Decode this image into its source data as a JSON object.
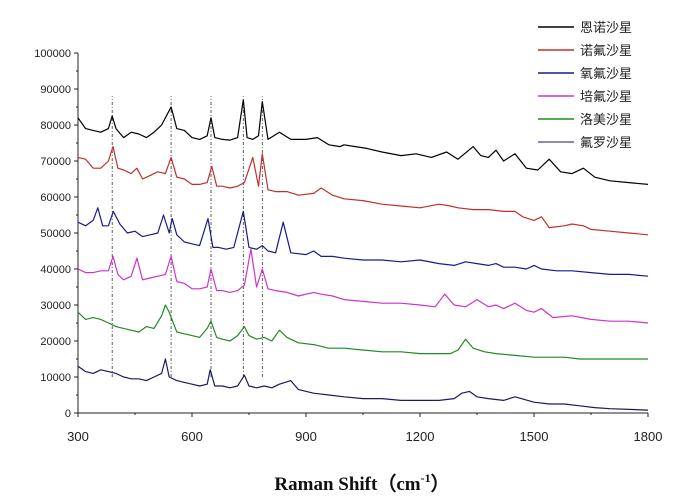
{
  "chart_data": {
    "type": "line",
    "title": "",
    "xlabel": "Raman Shift（cm-1）",
    "xlabel_main": "Raman Shift（cm",
    "xlabel_sup": "-1",
    "xlabel_close": "）",
    "ylabel": "",
    "xlim": [
      300,
      1800
    ],
    "ylim": [
      0,
      100000
    ],
    "x_ticks": [
      300,
      600,
      900,
      1200,
      1500,
      1800
    ],
    "y_ticks": [
      0,
      10000,
      20000,
      30000,
      40000,
      50000,
      60000,
      70000,
      80000,
      90000,
      100000
    ],
    "x_tick_labels": [
      "300",
      "600",
      "900",
      "1200",
      "1500",
      "1800"
    ],
    "y_tick_labels": [
      "0",
      "10000",
      "20000",
      "30000",
      "40000",
      "50000",
      "60000",
      "70000",
      "80000",
      "90000",
      "100000"
    ],
    "grid": false,
    "legend_position": "top-right",
    "marker_lines_x": [
      390,
      545,
      650,
      735,
      785
    ],
    "series": [
      {
        "name": "恩诺沙星",
        "color": "#000000",
        "x": [
          300,
          320,
          340,
          360,
          380,
          390,
          400,
          420,
          440,
          460,
          480,
          500,
          520,
          535,
          545,
          560,
          580,
          600,
          620,
          640,
          650,
          660,
          680,
          700,
          720,
          735,
          745,
          760,
          775,
          785,
          800,
          830,
          860,
          900,
          930,
          960,
          990,
          1000,
          1030,
          1060,
          1100,
          1150,
          1190,
          1230,
          1270,
          1300,
          1340,
          1360,
          1380,
          1400,
          1420,
          1450,
          1480,
          1510,
          1540,
          1570,
          1600,
          1630,
          1660,
          1700,
          1750,
          1800
        ],
        "values": [
          82000,
          79000,
          78500,
          78000,
          79000,
          82500,
          79000,
          76500,
          78000,
          77500,
          76500,
          78000,
          80000,
          83000,
          85000,
          79000,
          78500,
          76500,
          76000,
          77000,
          82000,
          76500,
          76000,
          75800,
          76500,
          87000,
          76500,
          76000,
          77000,
          86500,
          76000,
          78000,
          76000,
          76000,
          76500,
          74500,
          74000,
          74500,
          74000,
          73500,
          72500,
          71500,
          72000,
          71000,
          72500,
          70500,
          74000,
          71500,
          71000,
          73000,
          70000,
          72000,
          68000,
          67500,
          70500,
          67000,
          66500,
          68000,
          65500,
          64500,
          64000,
          63500
        ]
      },
      {
        "name": "诺氟沙星",
        "color": "#c0302b",
        "x": [
          300,
          320,
          340,
          360,
          380,
          392,
          405,
          420,
          440,
          455,
          470,
          490,
          510,
          530,
          545,
          560,
          580,
          600,
          620,
          640,
          652,
          665,
          680,
          700,
          720,
          738,
          760,
          775,
          785,
          800,
          820,
          850,
          880,
          920,
          940,
          970,
          1000,
          1050,
          1100,
          1150,
          1200,
          1250,
          1280,
          1300,
          1340,
          1380,
          1420,
          1450,
          1470,
          1500,
          1520,
          1540,
          1580,
          1600,
          1630,
          1650,
          1700,
          1750,
          1800
        ],
        "values": [
          71000,
          70500,
          68000,
          68000,
          70000,
          74000,
          68000,
          67500,
          66500,
          68000,
          65000,
          66000,
          67000,
          66500,
          71000,
          65500,
          65000,
          63500,
          63500,
          64000,
          68500,
          63000,
          63000,
          62500,
          63000,
          64000,
          71000,
          63000,
          72000,
          62000,
          61500,
          61500,
          60500,
          61000,
          62500,
          60500,
          59500,
          59000,
          58000,
          57500,
          57000,
          58000,
          57500,
          57000,
          56500,
          56500,
          56000,
          56000,
          54500,
          53500,
          54500,
          51500,
          52000,
          52500,
          52000,
          51000,
          50500,
          50000,
          49500
        ]
      },
      {
        "name": "氧氟沙星",
        "color": "#1a1a8c",
        "x": [
          300,
          320,
          340,
          352,
          365,
          380,
          393,
          410,
          430,
          450,
          470,
          490,
          510,
          525,
          540,
          548,
          560,
          580,
          600,
          620,
          642,
          655,
          670,
          690,
          710,
          735,
          750,
          770,
          785,
          800,
          820,
          840,
          860,
          900,
          920,
          940,
          970,
          1000,
          1050,
          1100,
          1150,
          1200,
          1250,
          1290,
          1320,
          1350,
          1380,
          1400,
          1420,
          1450,
          1480,
          1500,
          1520,
          1560,
          1600,
          1650,
          1700,
          1750,
          1800
        ],
        "values": [
          53000,
          52000,
          53500,
          57000,
          52000,
          52000,
          56000,
          52500,
          50000,
          50500,
          49000,
          49500,
          50000,
          55000,
          50000,
          54000,
          49500,
          47500,
          47000,
          46500,
          54000,
          46000,
          46000,
          45500,
          46000,
          56000,
          46000,
          45500,
          46500,
          45000,
          44500,
          53000,
          44500,
          44000,
          45000,
          43500,
          43500,
          43000,
          42500,
          42500,
          42000,
          42500,
          41500,
          41000,
          42000,
          41500,
          41000,
          41500,
          40500,
          40500,
          40000,
          41000,
          40000,
          39500,
          39500,
          39000,
          38500,
          38500,
          38000
        ]
      },
      {
        "name": "培氟沙星",
        "color": "#cc33cc",
        "x": [
          300,
          320,
          340,
          360,
          380,
          392,
          405,
          420,
          440,
          455,
          470,
          490,
          510,
          530,
          545,
          560,
          580,
          600,
          620,
          640,
          650,
          665,
          680,
          700,
          720,
          738,
          755,
          770,
          785,
          800,
          820,
          850,
          880,
          920,
          940,
          970,
          1000,
          1050,
          1100,
          1150,
          1200,
          1240,
          1265,
          1290,
          1320,
          1350,
          1380,
          1400,
          1420,
          1450,
          1480,
          1500,
          1520,
          1550,
          1600,
          1650,
          1700,
          1750,
          1800
        ],
        "values": [
          40000,
          39000,
          39000,
          39500,
          39500,
          43500,
          38500,
          37000,
          38000,
          43000,
          37000,
          37500,
          38000,
          38500,
          43500,
          36500,
          36000,
          34500,
          34500,
          35000,
          40000,
          34000,
          34000,
          33500,
          34000,
          35500,
          45500,
          35000,
          40000,
          34500,
          34000,
          33500,
          32500,
          33500,
          33000,
          32500,
          31500,
          31000,
          30500,
          30500,
          30000,
          29500,
          33000,
          30000,
          29500,
          31500,
          29500,
          30000,
          29000,
          30500,
          28500,
          28000,
          29000,
          26500,
          27000,
          26000,
          25500,
          25500,
          25000
        ]
      },
      {
        "name": "洛美沙星",
        "color": "#228b22",
        "x": [
          300,
          320,
          340,
          360,
          380,
          400,
          420,
          440,
          460,
          480,
          500,
          520,
          530,
          540,
          560,
          580,
          600,
          620,
          640,
          650,
          665,
          680,
          700,
          720,
          738,
          750,
          770,
          790,
          810,
          830,
          850,
          880,
          920,
          960,
          1000,
          1050,
          1100,
          1150,
          1200,
          1250,
          1280,
          1300,
          1320,
          1340,
          1370,
          1400,
          1450,
          1500,
          1540,
          1580,
          1620,
          1660,
          1700,
          1750,
          1800
        ],
        "values": [
          28000,
          26000,
          26500,
          26000,
          25000,
          24000,
          23500,
          23000,
          22500,
          24000,
          23500,
          27000,
          30000,
          28000,
          22500,
          22000,
          21500,
          21000,
          23500,
          25500,
          21000,
          20500,
          20000,
          21500,
          24000,
          21500,
          20500,
          21000,
          20000,
          23000,
          21000,
          19500,
          19000,
          18000,
          18000,
          17500,
          17000,
          17000,
          16500,
          16500,
          16500,
          17500,
          20500,
          18000,
          17000,
          16500,
          16000,
          15500,
          15500,
          15500,
          15000,
          15000,
          15000,
          15000,
          15000
        ]
      },
      {
        "name": "氟罗沙星",
        "color": "#1a1a5e",
        "x": [
          300,
          320,
          340,
          360,
          380,
          400,
          420,
          440,
          460,
          480,
          500,
          520,
          530,
          540,
          560,
          580,
          600,
          620,
          640,
          648,
          660,
          680,
          700,
          720,
          738,
          750,
          770,
          790,
          810,
          830,
          860,
          880,
          920,
          960,
          1000,
          1050,
          1100,
          1150,
          1200,
          1250,
          1290,
          1310,
          1330,
          1350,
          1380,
          1420,
          1450,
          1500,
          1540,
          1580,
          1620,
          1660,
          1700,
          1750,
          1800
        ],
        "values": [
          13000,
          11500,
          11000,
          12000,
          11500,
          11000,
          10000,
          9500,
          9500,
          9000,
          10000,
          11000,
          15000,
          10000,
          9000,
          8500,
          8000,
          7500,
          8000,
          12000,
          7500,
          7500,
          7000,
          7500,
          10500,
          7500,
          7000,
          7500,
          7000,
          8000,
          9000,
          6500,
          5500,
          5000,
          4500,
          4000,
          4000,
          3500,
          3500,
          3500,
          4000,
          5500,
          6000,
          4500,
          4000,
          3500,
          4500,
          3000,
          2500,
          2500,
          2000,
          1500,
          1200,
          1000,
          800
        ]
      }
    ]
  }
}
